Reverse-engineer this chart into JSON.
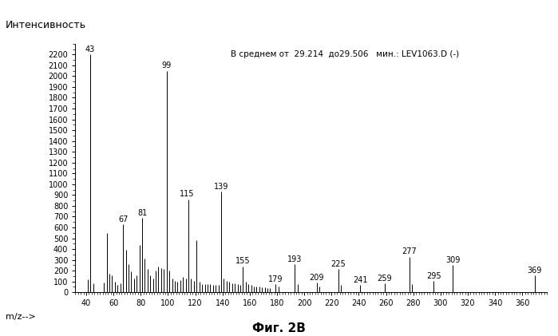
{
  "title_text": "В среднем от  29.214  до29.506   мин.: LEV1063.D (-)",
  "ylabel": "Интенсивность",
  "xlabel": "m/z-->",
  "caption": "Фиг. 2В",
  "xlim": [
    32,
    378
  ],
  "ylim": [
    0,
    2300
  ],
  "yticks": [
    0,
    100,
    200,
    300,
    400,
    500,
    600,
    700,
    800,
    900,
    1000,
    1100,
    1200,
    1300,
    1400,
    1500,
    1600,
    1700,
    1800,
    1900,
    2000,
    2100,
    2200
  ],
  "xticks": [
    40,
    60,
    80,
    100,
    120,
    140,
    160,
    180,
    200,
    220,
    240,
    260,
    280,
    300,
    320,
    340,
    360
  ],
  "peaks": [
    {
      "mz": 41,
      "intensity": 120,
      "label": ""
    },
    {
      "mz": 43,
      "intensity": 2200,
      "label": "43"
    },
    {
      "mz": 45,
      "intensity": 80,
      "label": ""
    },
    {
      "mz": 53,
      "intensity": 90,
      "label": ""
    },
    {
      "mz": 55,
      "intensity": 550,
      "label": ""
    },
    {
      "mz": 57,
      "intensity": 175,
      "label": ""
    },
    {
      "mz": 59,
      "intensity": 155,
      "label": ""
    },
    {
      "mz": 61,
      "intensity": 95,
      "label": ""
    },
    {
      "mz": 63,
      "intensity": 70,
      "label": ""
    },
    {
      "mz": 65,
      "intensity": 85,
      "label": ""
    },
    {
      "mz": 67,
      "intensity": 630,
      "label": "67"
    },
    {
      "mz": 69,
      "intensity": 390,
      "label": ""
    },
    {
      "mz": 71,
      "intensity": 260,
      "label": ""
    },
    {
      "mz": 73,
      "intensity": 195,
      "label": ""
    },
    {
      "mz": 75,
      "intensity": 125,
      "label": ""
    },
    {
      "mz": 77,
      "intensity": 155,
      "label": ""
    },
    {
      "mz": 79,
      "intensity": 440,
      "label": ""
    },
    {
      "mz": 81,
      "intensity": 685,
      "label": "81"
    },
    {
      "mz": 83,
      "intensity": 310,
      "label": ""
    },
    {
      "mz": 85,
      "intensity": 215,
      "label": ""
    },
    {
      "mz": 87,
      "intensity": 155,
      "label": ""
    },
    {
      "mz": 89,
      "intensity": 125,
      "label": ""
    },
    {
      "mz": 91,
      "intensity": 205,
      "label": ""
    },
    {
      "mz": 93,
      "intensity": 235,
      "label": ""
    },
    {
      "mz": 95,
      "intensity": 225,
      "label": ""
    },
    {
      "mz": 97,
      "intensity": 215,
      "label": ""
    },
    {
      "mz": 99,
      "intensity": 2050,
      "label": "99"
    },
    {
      "mz": 101,
      "intensity": 205,
      "label": ""
    },
    {
      "mz": 103,
      "intensity": 125,
      "label": ""
    },
    {
      "mz": 105,
      "intensity": 105,
      "label": ""
    },
    {
      "mz": 107,
      "intensity": 95,
      "label": ""
    },
    {
      "mz": 109,
      "intensity": 115,
      "label": ""
    },
    {
      "mz": 111,
      "intensity": 145,
      "label": ""
    },
    {
      "mz": 113,
      "intensity": 125,
      "label": ""
    },
    {
      "mz": 115,
      "intensity": 860,
      "label": "115"
    },
    {
      "mz": 117,
      "intensity": 125,
      "label": ""
    },
    {
      "mz": 119,
      "intensity": 105,
      "label": ""
    },
    {
      "mz": 121,
      "intensity": 480,
      "label": ""
    },
    {
      "mz": 123,
      "intensity": 95,
      "label": ""
    },
    {
      "mz": 125,
      "intensity": 75,
      "label": ""
    },
    {
      "mz": 127,
      "intensity": 75,
      "label": ""
    },
    {
      "mz": 129,
      "intensity": 75,
      "label": ""
    },
    {
      "mz": 131,
      "intensity": 75,
      "label": ""
    },
    {
      "mz": 133,
      "intensity": 70,
      "label": ""
    },
    {
      "mz": 135,
      "intensity": 70,
      "label": ""
    },
    {
      "mz": 137,
      "intensity": 70,
      "label": ""
    },
    {
      "mz": 139,
      "intensity": 930,
      "label": "139"
    },
    {
      "mz": 141,
      "intensity": 125,
      "label": ""
    },
    {
      "mz": 143,
      "intensity": 105,
      "label": ""
    },
    {
      "mz": 145,
      "intensity": 95,
      "label": ""
    },
    {
      "mz": 147,
      "intensity": 85,
      "label": ""
    },
    {
      "mz": 149,
      "intensity": 80,
      "label": ""
    },
    {
      "mz": 151,
      "intensity": 75,
      "label": ""
    },
    {
      "mz": 153,
      "intensity": 70,
      "label": ""
    },
    {
      "mz": 155,
      "intensity": 240,
      "label": "155"
    },
    {
      "mz": 157,
      "intensity": 95,
      "label": ""
    },
    {
      "mz": 159,
      "intensity": 75,
      "label": ""
    },
    {
      "mz": 161,
      "intensity": 65,
      "label": ""
    },
    {
      "mz": 163,
      "intensity": 55,
      "label": ""
    },
    {
      "mz": 165,
      "intensity": 50,
      "label": ""
    },
    {
      "mz": 167,
      "intensity": 50,
      "label": ""
    },
    {
      "mz": 169,
      "intensity": 45,
      "label": ""
    },
    {
      "mz": 171,
      "intensity": 45,
      "label": ""
    },
    {
      "mz": 173,
      "intensity": 40,
      "label": ""
    },
    {
      "mz": 175,
      "intensity": 40,
      "label": ""
    },
    {
      "mz": 179,
      "intensity": 75,
      "label": "179"
    },
    {
      "mz": 181,
      "intensity": 50,
      "label": ""
    },
    {
      "mz": 193,
      "intensity": 260,
      "label": "193"
    },
    {
      "mz": 195,
      "intensity": 75,
      "label": ""
    },
    {
      "mz": 209,
      "intensity": 90,
      "label": "209"
    },
    {
      "mz": 211,
      "intensity": 50,
      "label": ""
    },
    {
      "mz": 225,
      "intensity": 215,
      "label": "225"
    },
    {
      "mz": 227,
      "intensity": 65,
      "label": ""
    },
    {
      "mz": 241,
      "intensity": 65,
      "label": "241"
    },
    {
      "mz": 259,
      "intensity": 80,
      "label": "259"
    },
    {
      "mz": 277,
      "intensity": 330,
      "label": "277"
    },
    {
      "mz": 279,
      "intensity": 75,
      "label": ""
    },
    {
      "mz": 295,
      "intensity": 105,
      "label": "295"
    },
    {
      "mz": 309,
      "intensity": 250,
      "label": "309"
    },
    {
      "mz": 369,
      "intensity": 160,
      "label": "369"
    }
  ],
  "background_color": "#ffffff",
  "bar_color": "#000000"
}
